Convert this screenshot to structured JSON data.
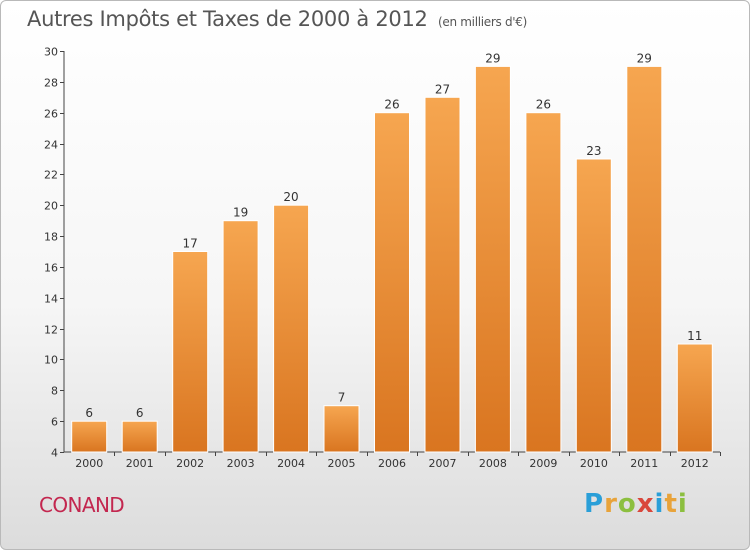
{
  "header": {
    "title": "Autres Impôts et Taxes de 2000 à 2012",
    "unit": "(en milliers d'€)"
  },
  "footer": {
    "commune": "CONAND",
    "logo_letters": [
      "P",
      "r",
      "o",
      "x",
      "i",
      "t",
      "i"
    ],
    "logo_colors": [
      "#2a9fd8",
      "#e8a33a",
      "#8cbf3f",
      "#d9473c",
      "#2a9fd8",
      "#e8a33a",
      "#8cbf3f"
    ]
  },
  "chart_data": {
    "type": "bar",
    "title": "Autres Impôts et Taxes de 2000 à 2012",
    "subtitle": "(en milliers d'€)",
    "xlabel": "",
    "ylabel": "",
    "categories": [
      "2000",
      "2001",
      "2002",
      "2003",
      "2004",
      "2005",
      "2006",
      "2007",
      "2008",
      "2009",
      "2010",
      "2011",
      "2012"
    ],
    "values": [
      6,
      6,
      17,
      19,
      20,
      7,
      26,
      27,
      29,
      26,
      23,
      29,
      11
    ],
    "ylim": [
      4,
      30
    ],
    "yticks": [
      4,
      6,
      8,
      10,
      12,
      14,
      16,
      18,
      20,
      22,
      24,
      26,
      28,
      30
    ],
    "grid": false,
    "data_labels": true,
    "colors": {
      "bar_light": "#f6a650",
      "bar_dark": "#d97520",
      "axis": "#444444"
    }
  }
}
